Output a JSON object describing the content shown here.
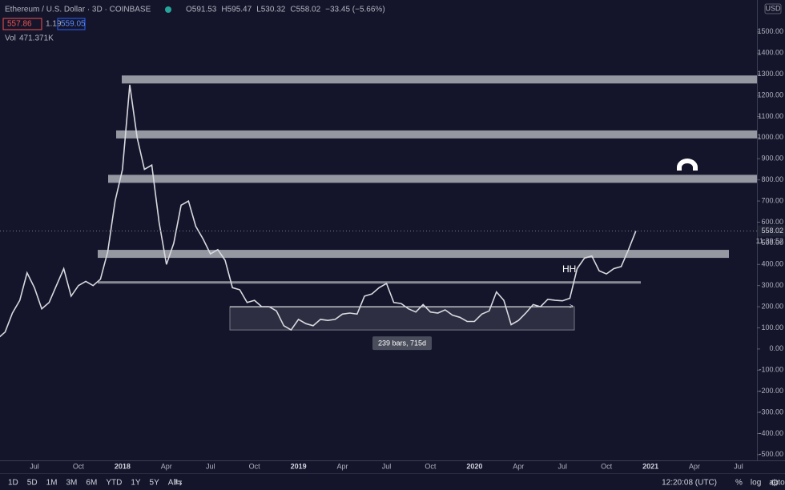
{
  "chart_data": {
    "type": "line",
    "title": "Ethereum / U.S. Dollar · 3D · COINBASE",
    "ohlc": [
      "O591.53",
      "H595.47",
      "L530.32",
      "C558.02",
      "−33.45 (−5.66%)"
    ],
    "bid": "557.86",
    "spread": "1.19",
    "ask": "559.05",
    "volume_label": "Vol",
    "volume_value": "471.371K",
    "currency": "USD",
    "last_price": {
      "value": 558.02,
      "label": "558.02"
    },
    "countdown": "11:39:52",
    "categories": [
      null,
      null,
      null,
      null,
      null,
      "Jul",
      null,
      null,
      null,
      null,
      null,
      "Oct",
      null,
      null,
      null,
      null,
      null,
      "2018",
      null,
      null,
      null,
      null,
      null,
      "Apr",
      null,
      null,
      null,
      null,
      null,
      "Jul",
      null,
      null,
      null,
      null,
      null,
      "Oct",
      null,
      null,
      null,
      null,
      null,
      "2019",
      null,
      null,
      null,
      null,
      null,
      "Apr",
      null,
      null,
      null,
      null,
      null,
      "Jul",
      null,
      null,
      null,
      null,
      null,
      "Oct",
      null,
      null,
      null,
      null,
      null,
      "2020",
      null,
      null,
      null,
      null,
      null,
      "Apr",
      null,
      null,
      null,
      null,
      null,
      "Jul",
      null,
      null,
      null,
      null,
      null,
      "Oct",
      null,
      null,
      null,
      null,
      null,
      "2021",
      null,
      null,
      null,
      null,
      null,
      "Apr",
      null,
      null,
      null,
      null,
      null,
      "Jul"
    ],
    "series": [
      {
        "name": "ETHUSD",
        "color": "#d9d9de",
        "values": [
          50,
          80,
          170,
          230,
          360,
          290,
          190,
          220,
          300,
          380,
          250,
          300,
          320,
          300,
          330,
          460,
          700,
          850,
          1250,
          1000,
          850,
          870,
          600,
          400,
          500,
          680,
          700,
          580,
          520,
          450,
          470,
          420,
          290,
          280,
          220,
          230,
          200,
          200,
          180,
          110,
          90,
          140,
          120,
          110,
          140,
          135,
          140,
          165,
          170,
          165,
          250,
          260,
          290,
          310,
          220,
          215,
          190,
          175,
          210,
          175,
          170,
          185,
          160,
          150,
          130,
          130,
          165,
          180,
          270,
          230,
          115,
          135,
          170,
          210,
          200,
          235,
          230,
          228,
          240,
          380,
          430,
          440,
          370,
          355,
          380,
          390,
          470,
          558,
          null,
          null,
          null,
          null,
          null,
          null,
          null,
          null,
          null,
          null,
          null,
          null,
          null,
          null
        ]
      }
    ],
    "levels": [
      1275,
      1015,
      805,
      450,
      315
    ],
    "range_box": {
      "label": "239 bars, 715d",
      "top": 200,
      "bottom": 90
    },
    "annotation": "HH",
    "ylim": [
      -527,
      1651
    ],
    "yticks": [
      {
        "value": 1500,
        "label": "1500.00"
      },
      {
        "value": 1400,
        "label": "1400.00"
      },
      {
        "value": 1300,
        "label": "1300.00"
      },
      {
        "value": 1200,
        "label": "1200.00"
      },
      {
        "value": 1100,
        "label": "1100.00"
      },
      {
        "value": 1000,
        "label": "1000.00"
      },
      {
        "value": 900,
        "label": "900.00"
      },
      {
        "value": 800,
        "label": "800.00"
      },
      {
        "value": 700,
        "label": "700.00"
      },
      {
        "value": 600,
        "label": "600.00"
      },
      {
        "value": 500,
        "label": "500.00"
      },
      {
        "value": 400,
        "label": "400.00"
      },
      {
        "value": 300,
        "label": "300.00"
      },
      {
        "value": 200,
        "label": "200.00"
      },
      {
        "value": 100,
        "label": "100.00"
      },
      {
        "value": 0,
        "label": "0.00"
      },
      {
        "value": -100,
        "label": "-100.00"
      },
      {
        "value": -200,
        "label": "-200.00"
      },
      {
        "value": -300,
        "label": "-300.00"
      },
      {
        "value": -400,
        "label": "-400.00"
      },
      {
        "value": -500,
        "label": "-500.00"
      }
    ],
    "grid": false,
    "toolbar": {
      "ranges": [
        "1D",
        "5D",
        "1M",
        "3M",
        "6M",
        "YTD",
        "1Y",
        "5Y",
        "All"
      ],
      "clock": "12:20:08 (UTC)",
      "options": [
        "%",
        "log",
        "auto"
      ]
    }
  }
}
